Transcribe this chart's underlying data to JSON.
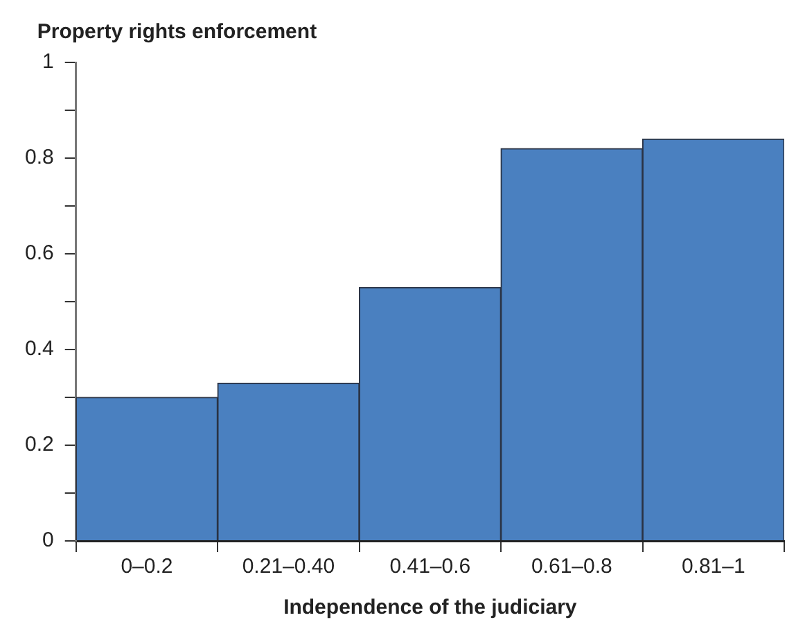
{
  "chart_data": {
    "type": "bar",
    "ylabel": "Property rights enforcement",
    "xlabel": "Independence of the judiciary",
    "categories": [
      "0–0.2",
      "0.21–0.40",
      "0.41–0.6",
      "0.61–0.8",
      "0.81–1"
    ],
    "values": [
      0.3,
      0.33,
      0.53,
      0.82,
      0.84
    ],
    "color": "#4a80c0",
    "ylim": [
      0,
      1
    ],
    "yticks": [
      0,
      {
        "value": 0.1,
        "label": null
      },
      0.2,
      {
        "value": 0.3,
        "label": null
      },
      0.4,
      {
        "value": 0.5,
        "label": null
      },
      0.6,
      {
        "value": 0.7,
        "label": null
      },
      0.8,
      {
        "value": 0.9,
        "label": null
      },
      1
    ],
    "grid": false,
    "legend": false
  }
}
